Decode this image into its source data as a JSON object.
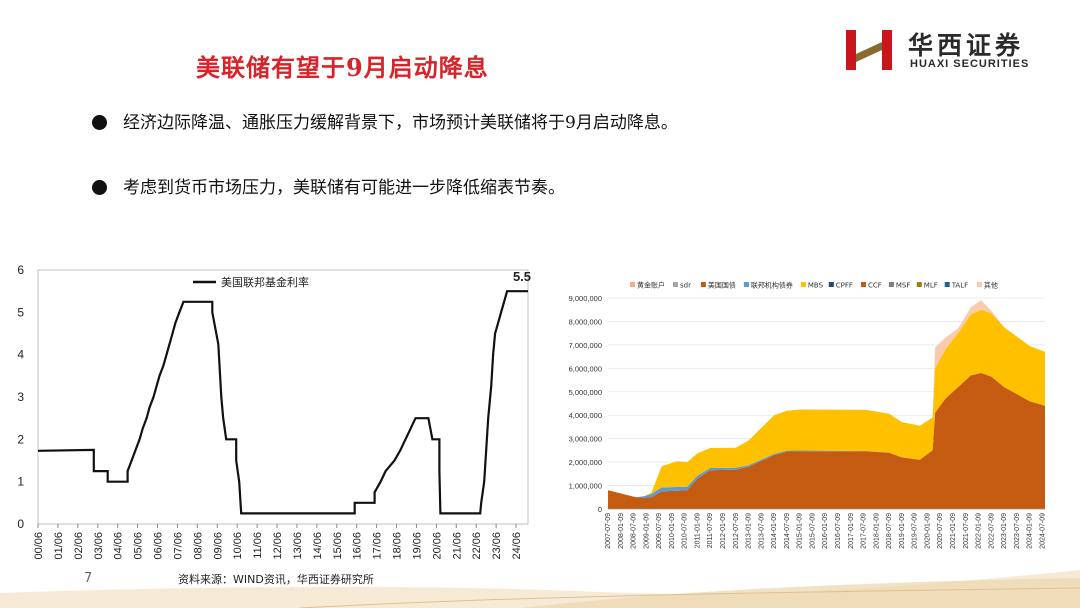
{
  "title": "美联储有望于9月启动降息",
  "logo": {
    "cn": "华西证券",
    "en": "HUAXI SECURITIES"
  },
  "bullets": [
    "经济边际降温、通胀压力缓解背景下，市场预计美联储将于9月启动降息。",
    "考虑到货币市场压力，美联储有可能进一步降低缩表节奏。"
  ],
  "source": "资料来源：WIND资讯，华西证券研究所",
  "page_number": "7",
  "colors": {
    "title": "#d6242a",
    "line": "#111111",
    "treasury": "#c55a11",
    "mbs": "#ffc000",
    "other": "#f4b183",
    "logo_red": "#c8161d"
  },
  "chart_data": [
    {
      "type": "line",
      "title": "",
      "legend": "美国联邦基金利率",
      "legend_position": "top-left",
      "annotation": "5.5",
      "ylim": [
        0,
        6
      ],
      "yticks": [
        "0",
        "1",
        "2",
        "3",
        "4",
        "5",
        "6"
      ],
      "xticks": [
        "00/06",
        "01/06",
        "02/06",
        "03/06",
        "04/06",
        "05/06",
        "06/06",
        "07/06",
        "08/06",
        "09/06",
        "10/06",
        "11/06",
        "12/06",
        "13/06",
        "14/06",
        "15/06",
        "16/06",
        "17/06",
        "18/06",
        "19/06",
        "20/06",
        "21/06",
        "22/06",
        "23/06",
        "24/06"
      ],
      "xlim": [
        2000.0,
        2024.6
      ],
      "series": [
        {
          "name": "美国联邦基金利率",
          "points": [
            [
              2000.0,
              1.73
            ],
            [
              2002.8,
              1.75
            ],
            [
              2002.8,
              1.25
            ],
            [
              2003.5,
              1.25
            ],
            [
              2003.5,
              1.0
            ],
            [
              2004.5,
              1.0
            ],
            [
              2004.5,
              1.25
            ],
            [
              2004.7,
              1.5
            ],
            [
              2004.9,
              1.75
            ],
            [
              2005.1,
              2.0
            ],
            [
              2005.25,
              2.25
            ],
            [
              2005.45,
              2.5
            ],
            [
              2005.6,
              2.75
            ],
            [
              2005.8,
              3.0
            ],
            [
              2005.95,
              3.25
            ],
            [
              2006.1,
              3.5
            ],
            [
              2006.3,
              3.75
            ],
            [
              2006.45,
              4.0
            ],
            [
              2006.6,
              4.25
            ],
            [
              2006.75,
              4.5
            ],
            [
              2006.9,
              4.75
            ],
            [
              2007.1,
              5.0
            ],
            [
              2007.3,
              5.25
            ],
            [
              2008.75,
              5.25
            ],
            [
              2008.75,
              5.0
            ],
            [
              2008.85,
              4.75
            ],
            [
              2008.95,
              4.5
            ],
            [
              2009.05,
              4.25
            ],
            [
              2009.2,
              3.0
            ],
            [
              2009.3,
              2.5
            ],
            [
              2009.45,
              2.0
            ],
            [
              2009.95,
              2.0
            ],
            [
              2009.95,
              1.5
            ],
            [
              2010.1,
              1.0
            ],
            [
              2010.2,
              0.25
            ],
            [
              2015.9,
              0.25
            ],
            [
              2015.9,
              0.5
            ],
            [
              2016.9,
              0.5
            ],
            [
              2016.9,
              0.75
            ],
            [
              2017.2,
              1.0
            ],
            [
              2017.45,
              1.25
            ],
            [
              2017.9,
              1.5
            ],
            [
              2018.2,
              1.75
            ],
            [
              2018.45,
              2.0
            ],
            [
              2018.7,
              2.25
            ],
            [
              2018.95,
              2.5
            ],
            [
              2019.6,
              2.5
            ],
            [
              2019.7,
              2.25
            ],
            [
              2019.8,
              2.0
            ],
            [
              2020.15,
              2.0
            ],
            [
              2020.15,
              1.25
            ],
            [
              2020.2,
              0.25
            ],
            [
              2022.2,
              0.25
            ],
            [
              2022.25,
              0.5
            ],
            [
              2022.4,
              1.0
            ],
            [
              2022.5,
              1.75
            ],
            [
              2022.6,
              2.5
            ],
            [
              2022.75,
              3.25
            ],
            [
              2022.85,
              4.0
            ],
            [
              2022.95,
              4.5
            ],
            [
              2023.1,
              4.75
            ],
            [
              2023.25,
              5.0
            ],
            [
              2023.4,
              5.25
            ],
            [
              2023.55,
              5.5
            ],
            [
              2024.6,
              5.5
            ]
          ]
        }
      ]
    },
    {
      "type": "area",
      "title": "",
      "legend_position": "top",
      "ylim": [
        0,
        9000000
      ],
      "yticks": [
        "0",
        "1,000,000",
        "2,000,000",
        "3,000,000",
        "4,000,000",
        "5,000,000",
        "6,000,000",
        "7,000,000",
        "8,000,000",
        "9,000,000"
      ],
      "xticks": [
        "2007-07-09",
        "2008-01-09",
        "2008-07-09",
        "2009-01-09",
        "2009-07-09",
        "2010-01-09",
        "2010-07-09",
        "2011-01-09",
        "2011-07-09",
        "2012-01-09",
        "2012-07-09",
        "2013-01-09",
        "2013-07-09",
        "2014-01-09",
        "2014-07-09",
        "2015-01-09",
        "2015-07-09",
        "2016-01-09",
        "2016-07-09",
        "2017-01-09",
        "2017-07-09",
        "2018-01-09",
        "2018-07-09",
        "2019-01-09",
        "2019-07-09",
        "2020-01-09",
        "2020-07-09",
        "2021-01-09",
        "2021-07-09",
        "2022-01-09",
        "2022-07-09",
        "2023-01-09",
        "2023-07-09",
        "2024-01-09",
        "2024-07-09"
      ],
      "x": [
        2007.5,
        2008.6,
        2008.9,
        2009.2,
        2009.6,
        2010.2,
        2010.6,
        2011.0,
        2011.5,
        2012.5,
        2013.0,
        2013.5,
        2014.0,
        2014.5,
        2015.0,
        2016.0,
        2017.0,
        2017.6,
        2018.5,
        2019.0,
        2019.7,
        2020.2,
        2020.3,
        2020.7,
        2021.2,
        2021.7,
        2022.1,
        2022.5,
        2023.0,
        2023.5,
        2024.0,
        2024.6
      ],
      "series": [
        {
          "name": "黄金账户",
          "values": [
            0,
            0,
            0,
            0,
            0,
            0,
            0,
            0,
            0,
            0,
            0,
            0,
            0,
            0,
            0,
            0,
            0,
            0,
            0,
            0,
            0,
            0,
            0,
            0,
            0,
            0,
            0,
            0,
            0,
            0,
            0,
            0
          ]
        },
        {
          "name": "sdr",
          "values": [
            0,
            0,
            0,
            0,
            0,
            0,
            0,
            0,
            0,
            0,
            0,
            0,
            0,
            0,
            0,
            0,
            0,
            0,
            0,
            0,
            0,
            0,
            0,
            0,
            0,
            0,
            0,
            0,
            0,
            0,
            0,
            0
          ]
        },
        {
          "name": "美国国债",
          "values": [
            800000,
            500000,
            480000,
            500000,
            750000,
            780000,
            800000,
            1300000,
            1650000,
            1680000,
            1800000,
            2050000,
            2300000,
            2450000,
            2460000,
            2460000,
            2460000,
            2460000,
            2400000,
            2200000,
            2100000,
            2500000,
            4100000,
            4700000,
            5200000,
            5700000,
            5800000,
            5650000,
            5200000,
            4900000,
            4600000,
            4400000
          ]
        },
        {
          "name": "联邦机构债券",
          "values": [
            0,
            0,
            60000,
            140000,
            170000,
            160000,
            150000,
            120000,
            100000,
            80000,
            70000,
            60000,
            50000,
            40000,
            35000,
            30000,
            20000,
            15000,
            10000,
            5000,
            3000,
            2000,
            2000,
            2000,
            2000,
            2000,
            2000,
            2000,
            2000,
            2000,
            2000,
            2000
          ]
        },
        {
          "name": "MBS",
          "values": [
            0,
            0,
            0,
            50000,
            900000,
            1100000,
            1050000,
            950000,
            850000,
            850000,
            1050000,
            1350000,
            1650000,
            1700000,
            1750000,
            1750000,
            1750000,
            1750000,
            1650000,
            1500000,
            1450000,
            1400000,
            1900000,
            2100000,
            2300000,
            2600000,
            2700000,
            2700000,
            2550000,
            2450000,
            2350000,
            2300000
          ]
        },
        {
          "name": "CPFF",
          "values": [
            0,
            0,
            0,
            0,
            0,
            0,
            0,
            0,
            0,
            0,
            0,
            0,
            0,
            0,
            0,
            0,
            0,
            0,
            0,
            0,
            0,
            0,
            0,
            0,
            0,
            0,
            0,
            0,
            0,
            0,
            0,
            0
          ]
        },
        {
          "name": "CCF",
          "values": [
            0,
            0,
            0,
            0,
            0,
            0,
            0,
            0,
            0,
            0,
            0,
            0,
            0,
            0,
            0,
            0,
            0,
            0,
            0,
            0,
            0,
            0,
            0,
            0,
            0,
            0,
            0,
            0,
            0,
            0,
            0,
            0
          ]
        },
        {
          "name": "MSF",
          "values": [
            0,
            0,
            0,
            0,
            0,
            0,
            0,
            0,
            0,
            0,
            0,
            0,
            0,
            0,
            0,
            0,
            0,
            0,
            0,
            0,
            0,
            0,
            0,
            0,
            0,
            0,
            0,
            0,
            0,
            0,
            0,
            0
          ]
        },
        {
          "name": "MLF",
          "values": [
            0,
            0,
            0,
            0,
            0,
            0,
            0,
            0,
            0,
            0,
            0,
            0,
            0,
            0,
            0,
            0,
            0,
            0,
            0,
            0,
            0,
            0,
            0,
            0,
            0,
            0,
            0,
            0,
            0,
            0,
            0,
            0
          ]
        },
        {
          "name": "TALF",
          "values": [
            0,
            0,
            0,
            0,
            0,
            0,
            0,
            0,
            0,
            0,
            0,
            0,
            0,
            0,
            0,
            0,
            0,
            0,
            0,
            0,
            0,
            0,
            0,
            0,
            0,
            0,
            0,
            0,
            0,
            0,
            0,
            0
          ]
        },
        {
          "name": "其他",
          "values": [
            0,
            0,
            0,
            0,
            0,
            0,
            0,
            0,
            0,
            0,
            0,
            0,
            0,
            0,
            0,
            0,
            0,
            0,
            0,
            0,
            0,
            0,
            900000,
            500000,
            200000,
            300000,
            400000,
            100000,
            0,
            0,
            0,
            0
          ]
        }
      ],
      "series_colors": [
        "#f4b183",
        "#a5a5a5",
        "#c55a11",
        "#5b9bd5",
        "#ffc000",
        "#264478",
        "#c55a11",
        "#7f7f7f",
        "#9e7c0c",
        "#255e91",
        "#f8cbad"
      ]
    }
  ]
}
